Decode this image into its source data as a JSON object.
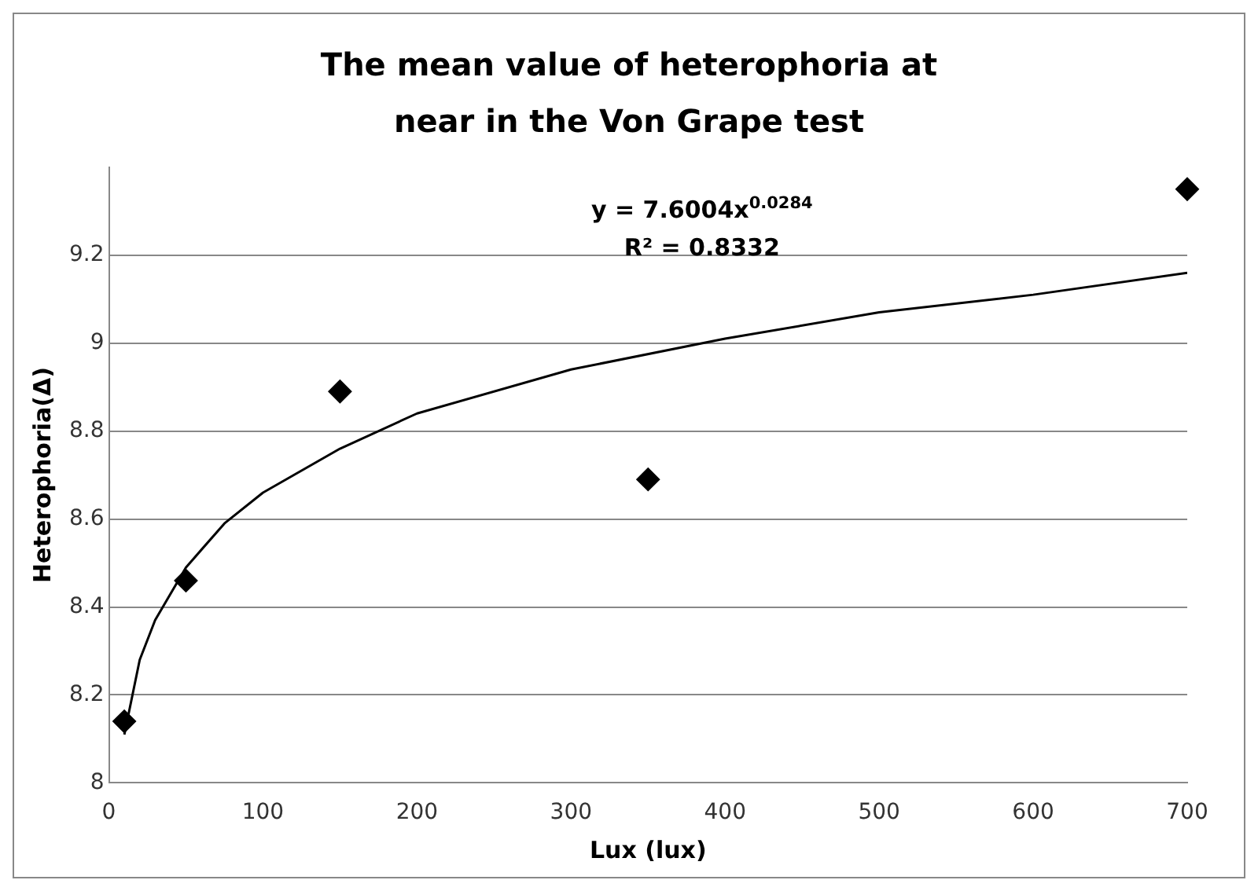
{
  "chart_data": {
    "type": "scatter",
    "title": "The mean value of heterophoria at near in the Von Grape test",
    "xlabel": "Lux (lux)",
    "ylabel": "Heterophoria(Δ)",
    "series": [
      {
        "color": "#000000",
        "marker": "diamond",
        "x": [
          10,
          50,
          150,
          350,
          700
        ],
        "values": [
          8.14,
          8.46,
          8.89,
          8.69,
          9.35
        ]
      },
      {
        "type": "line",
        "color": "#000000",
        "marker": "none",
        "line_style": "solid",
        "x": [
          10,
          20,
          30,
          50,
          75,
          100,
          150,
          200,
          300,
          400,
          500,
          600,
          700
        ],
        "values": [
          8.11,
          8.28,
          8.37,
          8.49,
          8.59,
          8.66,
          8.76,
          8.84,
          8.94,
          9.01,
          9.07,
          9.11,
          9.16
        ]
      }
    ],
    "annotations": [
      "y = 7.6004x$^{0.0284}$",
      "R² = 0.8332"
    ],
    "xlim": [
      0,
      700
    ],
    "xticks": [
      0,
      100,
      200,
      300,
      400,
      500,
      600,
      700
    ],
    "ylim": [
      8,
      9.4
    ],
    "yticks": [
      8,
      8.2,
      8.4,
      8.6,
      8.8,
      9,
      9.2
    ],
    "grid": "y",
    "legend": false
  }
}
